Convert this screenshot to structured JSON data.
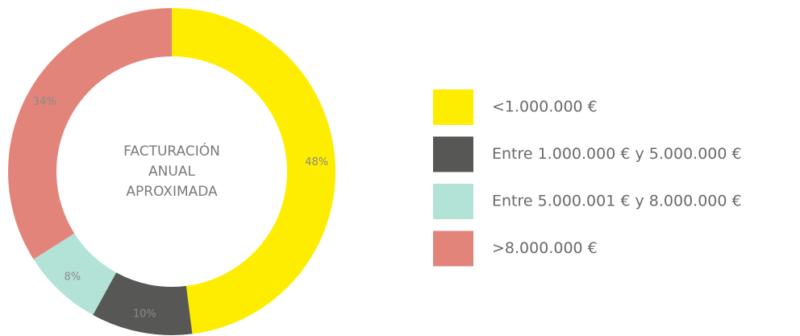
{
  "chart_data": {
    "type": "donut",
    "center_text": [
      "FACTURACIÓN",
      "ANUAL",
      "APROXIMADA"
    ],
    "categories": [
      "<1.000.000 €",
      "Entre 1.000.000 € y 5.000.000 €",
      "Entre 5.000.001 € y 8.000.000 €",
      ">8.000.000 €"
    ],
    "values": [
      48,
      10,
      8,
      34
    ],
    "value_labels": [
      "48%",
      "10%",
      "8%",
      "34%"
    ],
    "colors": [
      "#ffed00",
      "#575756",
      "#b3e3d7",
      "#e3847b"
    ],
    "legend": "right"
  }
}
